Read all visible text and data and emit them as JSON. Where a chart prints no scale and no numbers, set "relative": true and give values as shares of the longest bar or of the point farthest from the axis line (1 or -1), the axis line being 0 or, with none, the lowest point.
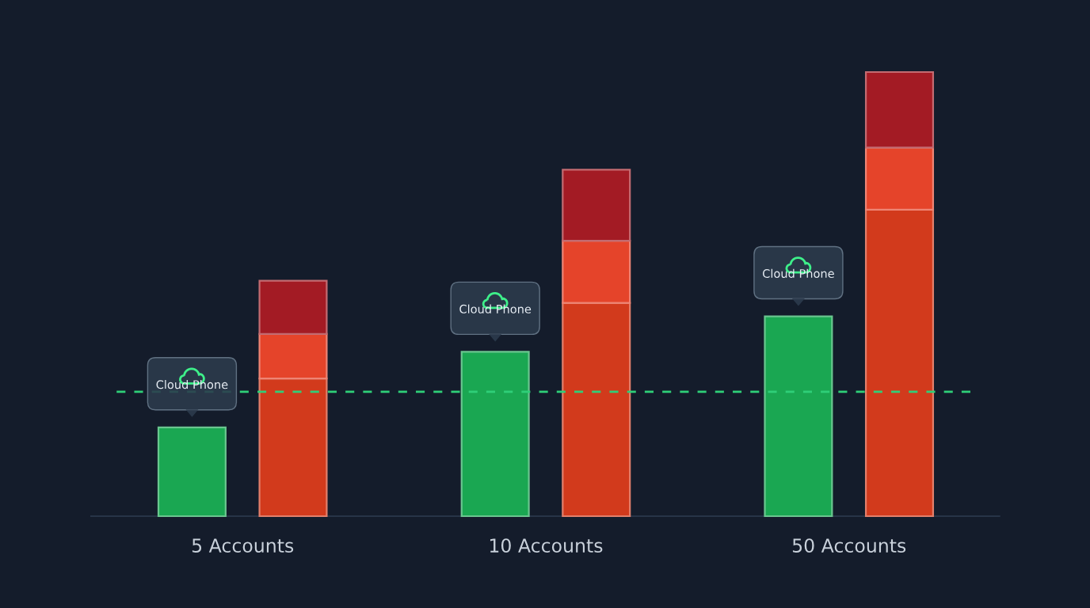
{
  "chart_data": {
    "type": "bar",
    "relative": true,
    "stacked": true,
    "categories": [
      null,
      "5 Accounts",
      null,
      null,
      null,
      null,
      null,
      "10 Accounts",
      null,
      null,
      null,
      null,
      null,
      "50 Accounts",
      null
    ],
    "series": [
      {
        "name": "Cloud Phone",
        "color": "#1aa752",
        "values": [
          0.2,
          null,
          null,
          null,
          null,
          null,
          0.37,
          null,
          null,
          null,
          null,
          null,
          0.45,
          null,
          null
        ]
      },
      {
        "color": "#d23a1c",
        "values": [
          null,
          null,
          0.31,
          null,
          null,
          null,
          null,
          null,
          0.48,
          null,
          null,
          null,
          null,
          null,
          0.69
        ]
      },
      {
        "color": "#e5442a",
        "values": [
          null,
          null,
          0.1,
          null,
          null,
          null,
          null,
          null,
          0.14,
          null,
          null,
          null,
          null,
          null,
          0.14
        ]
      },
      {
        "color": "#a31b24",
        "values": [
          null,
          null,
          0.12,
          null,
          null,
          null,
          null,
          null,
          0.16,
          null,
          null,
          null,
          null,
          null,
          0.17
        ]
      }
    ],
    "ref_lines": [
      {
        "axis": "y",
        "value": 0.28,
        "color": "#2fcf78",
        "line_style": "dashed"
      }
    ]
  }
}
